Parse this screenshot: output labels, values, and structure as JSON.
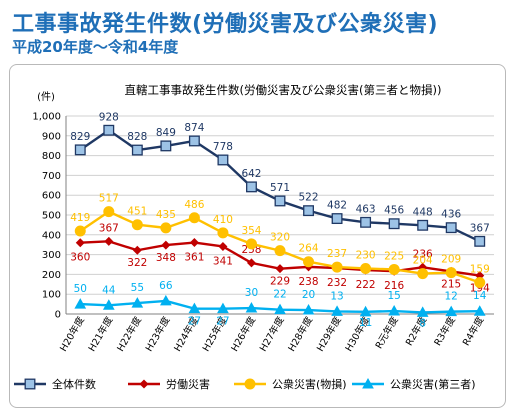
{
  "header": {
    "title": "工事事故発生件数(労働災害及び公衆災害)",
    "subtitle": "平成20年度～令和4年度"
  },
  "chart_data": {
    "type": "line",
    "title": "直轄工事事故発生件数(労働災害及び公衆災害(第三者と物損))",
    "ylabel": "(件)",
    "ylim": [
      0,
      1000
    ],
    "yticks": [
      "0",
      "100",
      "200",
      "300",
      "400",
      "500",
      "600",
      "700",
      "800",
      "900",
      "1,000"
    ],
    "grid": true,
    "legend_position": "bottom",
    "categories": [
      "H20年度",
      "H21年度",
      "H22年度",
      "H23年度",
      "H24年度",
      "H25年度",
      "H26年度",
      "H27年度",
      "H28年度",
      "H29年度",
      "H30年度",
      "R元年度",
      "R2年度",
      "R3年度",
      "R4年度"
    ],
    "series": [
      {
        "name": "全体件数",
        "color": "#1f3864",
        "marker": "square",
        "marker_fill": "#9dc3e6",
        "label_color": "#1f3864",
        "values": [
          829,
          928,
          828,
          849,
          874,
          778,
          642,
          571,
          522,
          482,
          463,
          456,
          448,
          436,
          367
        ]
      },
      {
        "name": "労働災害",
        "color": "#c00000",
        "marker": "diamond",
        "marker_fill": "#c00000",
        "label_color": "#c00000",
        "values": [
          360,
          367,
          322,
          348,
          361,
          341,
          258,
          229,
          238,
          232,
          222,
          216,
          236,
          215,
          194
        ]
      },
      {
        "name": "公衆災害(物損)",
        "color": "#ffc000",
        "marker": "circle",
        "marker_fill": "#ffc000",
        "label_color": "#ffc000",
        "values": [
          419,
          517,
          451,
          435,
          486,
          410,
          354,
          320,
          264,
          237,
          230,
          225,
          204,
          209,
          159
        ]
      },
      {
        "name": "公衆災害(第三者)",
        "color": "#00b0f0",
        "marker": "triangle",
        "marker_fill": "#00b0f0",
        "label_color": "#00b0f0",
        "values": [
          50,
          44,
          55,
          66,
          27,
          27,
          30,
          22,
          20,
          13,
          11,
          15,
          8,
          12,
          14
        ]
      }
    ]
  }
}
